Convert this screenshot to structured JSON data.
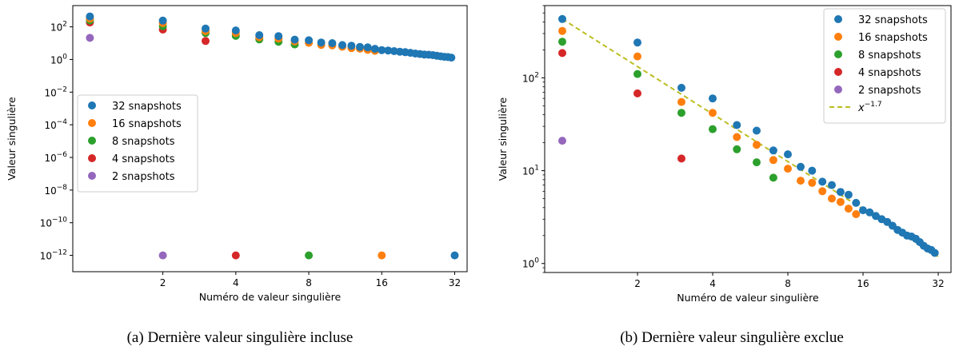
{
  "palette": {
    "32 snapshots": "#1f77b4",
    "16 snapshots": "#ff7f0e",
    "8 snapshots": "#2ca02c",
    "4 snapshots": "#d62728",
    "2 snapshots": "#9467bd",
    "fit": "#bcbd22"
  },
  "chart_data": [
    {
      "type": "scatter",
      "caption": "(a) Dernière valeur singulière incluse",
      "xlabel": "Numéro de valeur singulière",
      "ylabel": "Valeur singulière",
      "xscale": "log2",
      "yscale": "log10",
      "xlim": [
        0.85,
        36
      ],
      "ylim": [
        1e-13,
        2000
      ],
      "xticks": [
        2,
        4,
        8,
        16,
        32
      ],
      "xtick_labels": [
        "2",
        "4",
        "8",
        "16",
        "32"
      ],
      "yticks": [
        1e-12,
        1e-10,
        1e-08,
        1e-06,
        0.0001,
        0.01,
        1,
        100
      ],
      "ytick_base": [
        "10",
        "10",
        "10",
        "10",
        "10",
        "10",
        "10",
        "10"
      ],
      "ytick_exp": [
        "−12",
        "−10",
        "−8",
        "−6",
        "−4",
        "−2",
        "0",
        "2"
      ],
      "legend_position": "center-left",
      "series": [
        {
          "name": "32 snapshots",
          "x": [
            1,
            2,
            3,
            4,
            5,
            6,
            7,
            8,
            9,
            10,
            11,
            12,
            13,
            14,
            15,
            16,
            17,
            18,
            19,
            20,
            21,
            22,
            23,
            24,
            25,
            26,
            27,
            28,
            29,
            30,
            31,
            32
          ],
          "y": [
            430,
            240,
            78,
            60,
            31,
            27,
            16.5,
            15,
            11,
            10,
            7.6,
            7,
            5.9,
            5.5,
            4.5,
            3.75,
            3.55,
            3.25,
            3.0,
            2.8,
            2.55,
            2.3,
            2.15,
            2.0,
            1.95,
            1.85,
            1.7,
            1.55,
            1.45,
            1.4,
            1.3,
            1e-12
          ]
        },
        {
          "name": "16 snapshots",
          "x": [
            1,
            2,
            3,
            4,
            5,
            6,
            7,
            8,
            9,
            10,
            11,
            12,
            13,
            14,
            15,
            16
          ],
          "y": [
            320,
            170,
            55,
            42,
            23,
            19,
            13,
            10.5,
            7.8,
            7.4,
            6.0,
            5.0,
            4.6,
            3.9,
            3.4,
            1e-12
          ]
        },
        {
          "name": "8 snapshots",
          "x": [
            1,
            2,
            3,
            4,
            5,
            6,
            7,
            8
          ],
          "y": [
            245,
            110,
            42,
            28,
            17,
            12.3,
            8.4,
            1e-12
          ]
        },
        {
          "name": "4 snapshots",
          "x": [
            1,
            2,
            3,
            4
          ],
          "y": [
            185,
            68,
            13.5,
            1e-12
          ]
        },
        {
          "name": "2 snapshots",
          "x": [
            1,
            2
          ],
          "y": [
            21,
            1e-12
          ]
        }
      ]
    },
    {
      "type": "scatter",
      "caption": "(b) Dernière valeur singulière exclue",
      "xlabel": "Numéro de valeur singulière",
      "ylabel": "Valeur singulière",
      "xscale": "log2",
      "yscale": "log10",
      "xlim": [
        0.85,
        36
      ],
      "ylim": [
        0.8,
        600
      ],
      "xticks": [
        2,
        4,
        8,
        16,
        32
      ],
      "xtick_labels": [
        "2",
        "4",
        "8",
        "16",
        "32"
      ],
      "yticks": [
        1,
        10,
        100
      ],
      "ytick_base": [
        "10",
        "10",
        "10"
      ],
      "ytick_exp": [
        "0",
        "1",
        "2"
      ],
      "legend_position": "top-right",
      "fit_line": {
        "label": "x",
        "label_exp": "−1.7",
        "exponent": -1.7,
        "coefficient": 430,
        "x_range": [
          1,
          32
        ],
        "style": "dashed"
      },
      "series": [
        {
          "name": "32 snapshots",
          "x": [
            1,
            2,
            3,
            4,
            5,
            6,
            7,
            8,
            9,
            10,
            11,
            12,
            13,
            14,
            15,
            16,
            17,
            18,
            19,
            20,
            21,
            22,
            23,
            24,
            25,
            26,
            27,
            28,
            29,
            30,
            31
          ],
          "y": [
            430,
            240,
            78,
            60,
            31,
            27,
            16.5,
            15,
            11,
            10,
            7.6,
            7,
            5.9,
            5.5,
            4.5,
            3.75,
            3.55,
            3.25,
            3.0,
            2.8,
            2.55,
            2.3,
            2.15,
            2.0,
            1.95,
            1.85,
            1.7,
            1.55,
            1.45,
            1.4,
            1.3
          ]
        },
        {
          "name": "16 snapshots",
          "x": [
            1,
            2,
            3,
            4,
            5,
            6,
            7,
            8,
            9,
            10,
            11,
            12,
            13,
            14,
            15
          ],
          "y": [
            320,
            170,
            55,
            42,
            23,
            19,
            13,
            10.5,
            7.8,
            7.4,
            6.0,
            5.0,
            4.6,
            3.9,
            3.4
          ]
        },
        {
          "name": "8 snapshots",
          "x": [
            1,
            2,
            3,
            4,
            5,
            6,
            7
          ],
          "y": [
            245,
            110,
            42,
            28,
            17,
            12.3,
            8.4
          ]
        },
        {
          "name": "4 snapshots",
          "x": [
            1,
            2,
            3
          ],
          "y": [
            185,
            68,
            13.5
          ]
        },
        {
          "name": "2 snapshots",
          "x": [
            1
          ],
          "y": [
            21
          ]
        }
      ]
    }
  ]
}
